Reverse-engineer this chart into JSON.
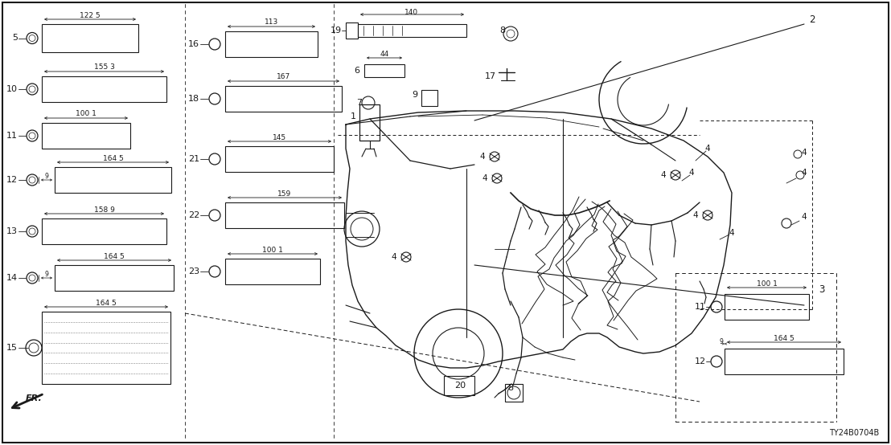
{
  "bg_color": "#ffffff",
  "line_color": "#1a1a1a",
  "diagram_ref": "TY24B0704B",
  "figsize": [
    11.08,
    5.54
  ],
  "dpi": 100
}
